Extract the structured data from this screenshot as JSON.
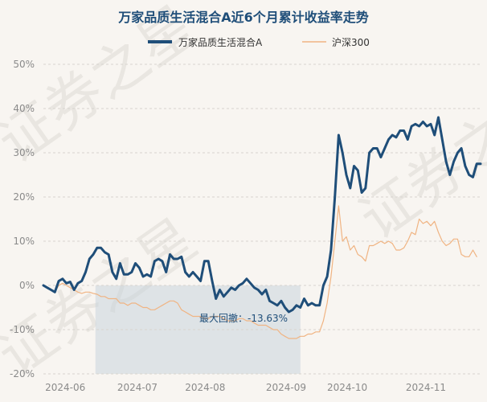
{
  "chart_data": {
    "type": "line",
    "title": "万家品质生活混合A近6个月累计收益率走势",
    "x_ticks": [
      "2024-06",
      "2024-07",
      "2024-08",
      "2024-09",
      "2024-10",
      "2024-11"
    ],
    "y_ticks": [
      "50%",
      "40%",
      "30%",
      "20%",
      "10%",
      "0%",
      "-10%",
      "-20%"
    ],
    "ylim": [
      -20,
      50
    ],
    "grid": true,
    "legend_position": "top-center",
    "series": [
      {
        "name": "万家品质生活混合A",
        "color": "#1f4e79",
        "values": [
          0,
          -0.5,
          -1,
          -1.5,
          1,
          1.5,
          0.5,
          0.8,
          -1,
          0.5,
          1,
          3,
          6,
          7,
          8.5,
          8.5,
          7.5,
          7,
          3,
          1.5,
          5,
          2.5,
          2.5,
          3,
          5,
          4,
          2,
          2.5,
          2,
          5.5,
          6,
          5.5,
          3,
          7,
          6,
          6,
          6.5,
          3,
          2,
          3,
          2,
          1,
          5.5,
          5.5,
          1,
          -3,
          -1,
          -2.5,
          -1.5,
          -0.5,
          -1,
          0,
          0.5,
          1.5,
          0.5,
          -0.5,
          -1,
          -2,
          -1,
          -3.5,
          -4,
          -4.5,
          -3.5,
          -5,
          -6,
          -5.5,
          -4.5,
          -5,
          -3,
          -4.5,
          -4,
          -4.5,
          -4.5,
          0,
          2,
          8,
          20,
          34,
          30,
          25,
          22,
          27,
          26,
          21,
          22,
          30,
          31,
          31,
          29,
          31,
          33,
          34,
          33.5,
          35,
          35,
          33,
          36,
          36.5,
          36,
          37,
          36,
          36.5,
          34,
          38,
          33,
          28,
          25,
          28,
          30,
          31,
          27,
          25,
          24.5,
          27.5,
          27.5
        ]
      },
      {
        "name": "沪深300",
        "color": "#f0b483",
        "values": [
          0,
          -0.5,
          -1,
          -1.5,
          0,
          0.5,
          0,
          -0.5,
          -1,
          -1.5,
          -1.8,
          -1.5,
          -1.5,
          -1.8,
          -2,
          -2.5,
          -2.5,
          -3,
          -3,
          -3,
          -4,
          -4,
          -4.5,
          -4,
          -4,
          -4.5,
          -5,
          -5,
          -5.5,
          -5.5,
          -5,
          -4.5,
          -4,
          -3.5,
          -3.5,
          -4,
          -5.5,
          -6,
          -6.5,
          -7,
          -7,
          -7,
          -7.5,
          -7.5,
          -7,
          -7,
          -7,
          -7.5,
          -8,
          -8,
          -8,
          -7.5,
          -7.5,
          -8,
          -8,
          -8.5,
          -9,
          -9,
          -9,
          -9.5,
          -10,
          -10,
          -11,
          -11.5,
          -12,
          -12,
          -12,
          -11.5,
          -11.5,
          -11,
          -11,
          -10.5,
          -10.5,
          -8,
          -4,
          2,
          10,
          18,
          10,
          11,
          8,
          9,
          7,
          6.5,
          5.5,
          9,
          9,
          9.5,
          10,
          9.5,
          10,
          9.5,
          8,
          8,
          8.5,
          10,
          12,
          11.5,
          15,
          14,
          14.5,
          13.5,
          14.5,
          12,
          10,
          9,
          9.5,
          10.5,
          10.5,
          7,
          6.5,
          6.5,
          8,
          6.5
        ]
      }
    ],
    "annotation": {
      "label": "最大回撤：-13.63%",
      "shaded_from_fraction": 0.119,
      "shaded_to_fraction": 0.588
    },
    "watermark": "证券之星"
  }
}
